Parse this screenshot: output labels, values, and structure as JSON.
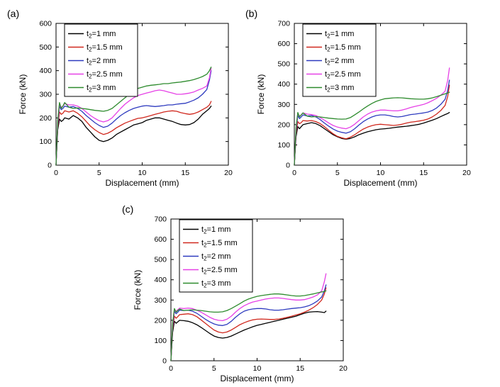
{
  "figure": {
    "background": "#ffffff",
    "axis_color": "#000000",
    "xlabel": "Displacement (mm)",
    "ylabel": "Force (kN)"
  },
  "chart_data": [
    {
      "panel_key": "a",
      "panel_label": "(a)",
      "type": "line",
      "xlabel": "Displacement (mm)",
      "ylabel": "Force (kN)",
      "xlim": [
        0,
        20
      ],
      "ylim": [
        0,
        600
      ],
      "xticks": [
        0,
        5,
        10,
        15,
        20
      ],
      "yticks": [
        0,
        100,
        200,
        300,
        400,
        500,
        600
      ],
      "legend_position": "top-left",
      "grid": false,
      "x": [
        0,
        0.2,
        0.4,
        0.6,
        0.8,
        1,
        1.5,
        2,
        2.5,
        3,
        3.5,
        4,
        4.5,
        5,
        5.5,
        6,
        6.5,
        7,
        7.5,
        8,
        8.5,
        9,
        9.5,
        10,
        10.5,
        11,
        11.5,
        12,
        12.5,
        13,
        13.5,
        14,
        14.5,
        15,
        15.5,
        16,
        16.5,
        17,
        17.5,
        17.8,
        18
      ],
      "series": [
        {
          "key": "t2-1mm",
          "label": {
            "pre": "t",
            "sub": "2",
            "post": "=1 mm"
          },
          "color": "#000000",
          "y": [
            0,
            150,
            195,
            185,
            190,
            200,
            195,
            210,
            200,
            185,
            160,
            140,
            120,
            105,
            100,
            105,
            115,
            130,
            140,
            150,
            160,
            170,
            175,
            180,
            190,
            195,
            200,
            200,
            195,
            190,
            185,
            178,
            172,
            170,
            172,
            180,
            195,
            215,
            230,
            240,
            250
          ]
        },
        {
          "key": "t2-1p5mm",
          "label": {
            "pre": "t",
            "sub": "2",
            "post": "=1.5 mm"
          },
          "color": "#d0281e",
          "y": [
            0,
            160,
            225,
            215,
            220,
            230,
            225,
            230,
            220,
            205,
            185,
            165,
            150,
            138,
            130,
            135,
            145,
            158,
            168,
            178,
            185,
            192,
            198,
            200,
            205,
            210,
            215,
            220,
            225,
            228,
            230,
            228,
            222,
            218,
            215,
            218,
            225,
            235,
            245,
            255,
            270
          ]
        },
        {
          "key": "t2-2mm",
          "label": {
            "pre": "t",
            "sub": "2",
            "post": "=2 mm"
          },
          "color": "#2e3bbf",
          "y": [
            0,
            170,
            250,
            235,
            240,
            250,
            245,
            248,
            240,
            228,
            210,
            195,
            180,
            168,
            160,
            165,
            178,
            195,
            210,
            222,
            232,
            240,
            245,
            250,
            252,
            250,
            248,
            250,
            252,
            255,
            255,
            258,
            260,
            262,
            268,
            275,
            285,
            300,
            320,
            360,
            400
          ]
        },
        {
          "key": "t2-2p5mm",
          "label": {
            "pre": "t",
            "sub": "2",
            "post": "=2.5 mm"
          },
          "color": "#e641e6",
          "y": [
            0,
            180,
            255,
            245,
            250,
            260,
            255,
            255,
            250,
            240,
            225,
            210,
            198,
            188,
            183,
            188,
            200,
            220,
            240,
            258,
            272,
            285,
            295,
            300,
            305,
            310,
            315,
            318,
            315,
            310,
            305,
            300,
            300,
            302,
            305,
            310,
            318,
            325,
            335,
            370,
            410
          ]
        },
        {
          "key": "t2-3mm",
          "label": {
            "pre": "t",
            "sub": "2",
            "post": "=3 mm"
          },
          "color": "#2e8b2e",
          "y": [
            0,
            190,
            265,
            240,
            250,
            265,
            245,
            240,
            242,
            240,
            238,
            235,
            232,
            230,
            228,
            232,
            240,
            255,
            270,
            285,
            300,
            315,
            325,
            330,
            335,
            338,
            340,
            342,
            345,
            345,
            348,
            350,
            352,
            355,
            358,
            362,
            368,
            375,
            385,
            400,
            415
          ]
        }
      ]
    },
    {
      "panel_key": "b",
      "panel_label": "(b)",
      "type": "line",
      "xlabel": "Displacement (mm)",
      "ylabel": "Force (kN)",
      "xlim": [
        0,
        20
      ],
      "ylim": [
        0,
        700
      ],
      "xticks": [
        0,
        5,
        10,
        15,
        20
      ],
      "yticks": [
        0,
        100,
        200,
        300,
        400,
        500,
        600,
        700
      ],
      "legend_position": "top-left",
      "grid": false,
      "x": [
        0,
        0.2,
        0.4,
        0.6,
        0.8,
        1,
        1.5,
        2,
        2.5,
        3,
        3.5,
        4,
        4.5,
        5,
        5.5,
        6,
        6.5,
        7,
        7.5,
        8,
        8.5,
        9,
        9.5,
        10,
        10.5,
        11,
        11.5,
        12,
        12.5,
        13,
        13.5,
        14,
        14.5,
        15,
        15.5,
        16,
        16.5,
        17,
        17.5,
        17.8,
        18
      ],
      "series": [
        {
          "key": "t2-1mm",
          "label": {
            "pre": "t",
            "sub": "2",
            "post": "=1 mm"
          },
          "color": "#000000",
          "y": [
            0,
            140,
            190,
            180,
            190,
            200,
            205,
            210,
            205,
            195,
            180,
            165,
            150,
            140,
            132,
            128,
            132,
            140,
            150,
            158,
            165,
            170,
            175,
            178,
            180,
            182,
            185,
            188,
            190,
            192,
            195,
            198,
            202,
            208,
            215,
            222,
            230,
            240,
            250,
            255,
            260
          ]
        },
        {
          "key": "t2-1p5mm",
          "label": {
            "pre": "t",
            "sub": "2",
            "post": "=1.5 mm"
          },
          "color": "#d0281e",
          "y": [
            0,
            155,
            215,
            205,
            210,
            220,
            218,
            220,
            215,
            205,
            190,
            172,
            155,
            142,
            135,
            130,
            138,
            150,
            165,
            178,
            188,
            195,
            200,
            202,
            200,
            198,
            196,
            198,
            202,
            208,
            212,
            215,
            218,
            222,
            228,
            238,
            252,
            270,
            295,
            340,
            395
          ]
        },
        {
          "key": "t2-2mm",
          "label": {
            "pre": "t",
            "sub": "2",
            "post": "=2 mm"
          },
          "color": "#2e3bbf",
          "y": [
            0,
            165,
            245,
            230,
            238,
            248,
            243,
            245,
            238,
            225,
            208,
            192,
            178,
            168,
            162,
            158,
            165,
            180,
            198,
            215,
            228,
            238,
            245,
            248,
            248,
            245,
            240,
            238,
            240,
            245,
            250,
            252,
            255,
            258,
            262,
            270,
            282,
            300,
            325,
            370,
            420
          ]
        },
        {
          "key": "t2-2p5mm",
          "label": {
            "pre": "t",
            "sub": "2",
            "post": "=2.5 mm"
          },
          "color": "#e641e6",
          "y": [
            0,
            175,
            255,
            242,
            248,
            258,
            252,
            250,
            245,
            235,
            222,
            208,
            196,
            188,
            183,
            180,
            188,
            202,
            220,
            238,
            252,
            262,
            268,
            272,
            272,
            270,
            268,
            268,
            272,
            278,
            285,
            290,
            295,
            300,
            308,
            318,
            330,
            345,
            365,
            420,
            480
          ]
        },
        {
          "key": "t2-3mm",
          "label": {
            "pre": "t",
            "sub": "2",
            "post": "=3 mm"
          },
          "color": "#2e8b2e",
          "y": [
            0,
            185,
            260,
            238,
            248,
            258,
            242,
            238,
            240,
            238,
            235,
            232,
            230,
            228,
            227,
            228,
            235,
            248,
            262,
            278,
            292,
            305,
            315,
            322,
            328,
            330,
            332,
            333,
            332,
            330,
            328,
            327,
            326,
            326,
            328,
            332,
            338,
            345,
            352,
            356,
            360
          ]
        }
      ]
    },
    {
      "panel_key": "c",
      "panel_label": "(c)",
      "type": "line",
      "xlabel": "Displacement (mm)",
      "ylabel": "Force (kN)",
      "xlim": [
        0,
        20
      ],
      "ylim": [
        0,
        700
      ],
      "xticks": [
        0,
        5,
        10,
        15,
        20
      ],
      "yticks": [
        0,
        100,
        200,
        300,
        400,
        500,
        600,
        700
      ],
      "legend_position": "top-left",
      "grid": false,
      "x": [
        0,
        0.2,
        0.4,
        0.6,
        0.8,
        1,
        1.5,
        2,
        2.5,
        3,
        3.5,
        4,
        4.5,
        5,
        5.5,
        6,
        6.5,
        7,
        7.5,
        8,
        8.5,
        9,
        9.5,
        10,
        10.5,
        11,
        11.5,
        12,
        12.5,
        13,
        13.5,
        14,
        14.5,
        15,
        15.5,
        16,
        16.5,
        17,
        17.5,
        17.8,
        18
      ],
      "series": [
        {
          "key": "t2-1mm",
          "label": {
            "pre": "t",
            "sub": "2",
            "post": "=1 mm"
          },
          "color": "#000000",
          "y": [
            0,
            140,
            195,
            185,
            192,
            200,
            198,
            195,
            188,
            178,
            165,
            150,
            135,
            122,
            115,
            112,
            115,
            122,
            132,
            142,
            152,
            160,
            168,
            175,
            180,
            185,
            190,
            195,
            200,
            205,
            210,
            215,
            220,
            228,
            235,
            240,
            242,
            243,
            240,
            238,
            245
          ]
        },
        {
          "key": "t2-1p5mm",
          "label": {
            "pre": "t",
            "sub": "2",
            "post": "=1.5 mm"
          },
          "color": "#d0281e",
          "y": [
            0,
            155,
            220,
            210,
            218,
            228,
            230,
            232,
            228,
            218,
            202,
            185,
            168,
            152,
            142,
            138,
            142,
            152,
            165,
            178,
            188,
            196,
            202,
            205,
            206,
            205,
            204,
            204,
            206,
            210,
            215,
            220,
            226,
            232,
            240,
            250,
            262,
            278,
            300,
            330,
            360
          ]
        },
        {
          "key": "t2-2mm",
          "label": {
            "pre": "t",
            "sub": "2",
            "post": "=2 mm"
          },
          "color": "#2e3bbf",
          "y": [
            0,
            165,
            245,
            232,
            240,
            250,
            248,
            250,
            245,
            235,
            220,
            205,
            192,
            182,
            176,
            174,
            180,
            195,
            215,
            232,
            245,
            252,
            256,
            258,
            258,
            256,
            252,
            250,
            250,
            252,
            255,
            258,
            260,
            262,
            266,
            272,
            282,
            295,
            315,
            345,
            375
          ]
        },
        {
          "key": "t2-2p5mm",
          "label": {
            "pre": "t",
            "sub": "2",
            "post": "=2.5 mm"
          },
          "color": "#e641e6",
          "y": [
            0,
            175,
            250,
            245,
            252,
            260,
            258,
            260,
            258,
            250,
            240,
            228,
            215,
            205,
            200,
            198,
            205,
            220,
            240,
            258,
            272,
            282,
            290,
            295,
            300,
            305,
            308,
            310,
            310,
            308,
            305,
            302,
            300,
            300,
            302,
            308,
            315,
            325,
            345,
            390,
            430
          ]
        },
        {
          "key": "t2-3mm",
          "label": {
            "pre": "t",
            "sub": "2",
            "post": "=3 mm"
          },
          "color": "#2e8b2e",
          "y": [
            0,
            185,
            258,
            240,
            248,
            255,
            248,
            250,
            252,
            250,
            248,
            245,
            242,
            240,
            240,
            242,
            248,
            258,
            270,
            282,
            295,
            305,
            312,
            318,
            322,
            325,
            328,
            330,
            330,
            328,
            325,
            322,
            320,
            320,
            322,
            326,
            330,
            335,
            340,
            342,
            345
          ]
        }
      ]
    }
  ]
}
